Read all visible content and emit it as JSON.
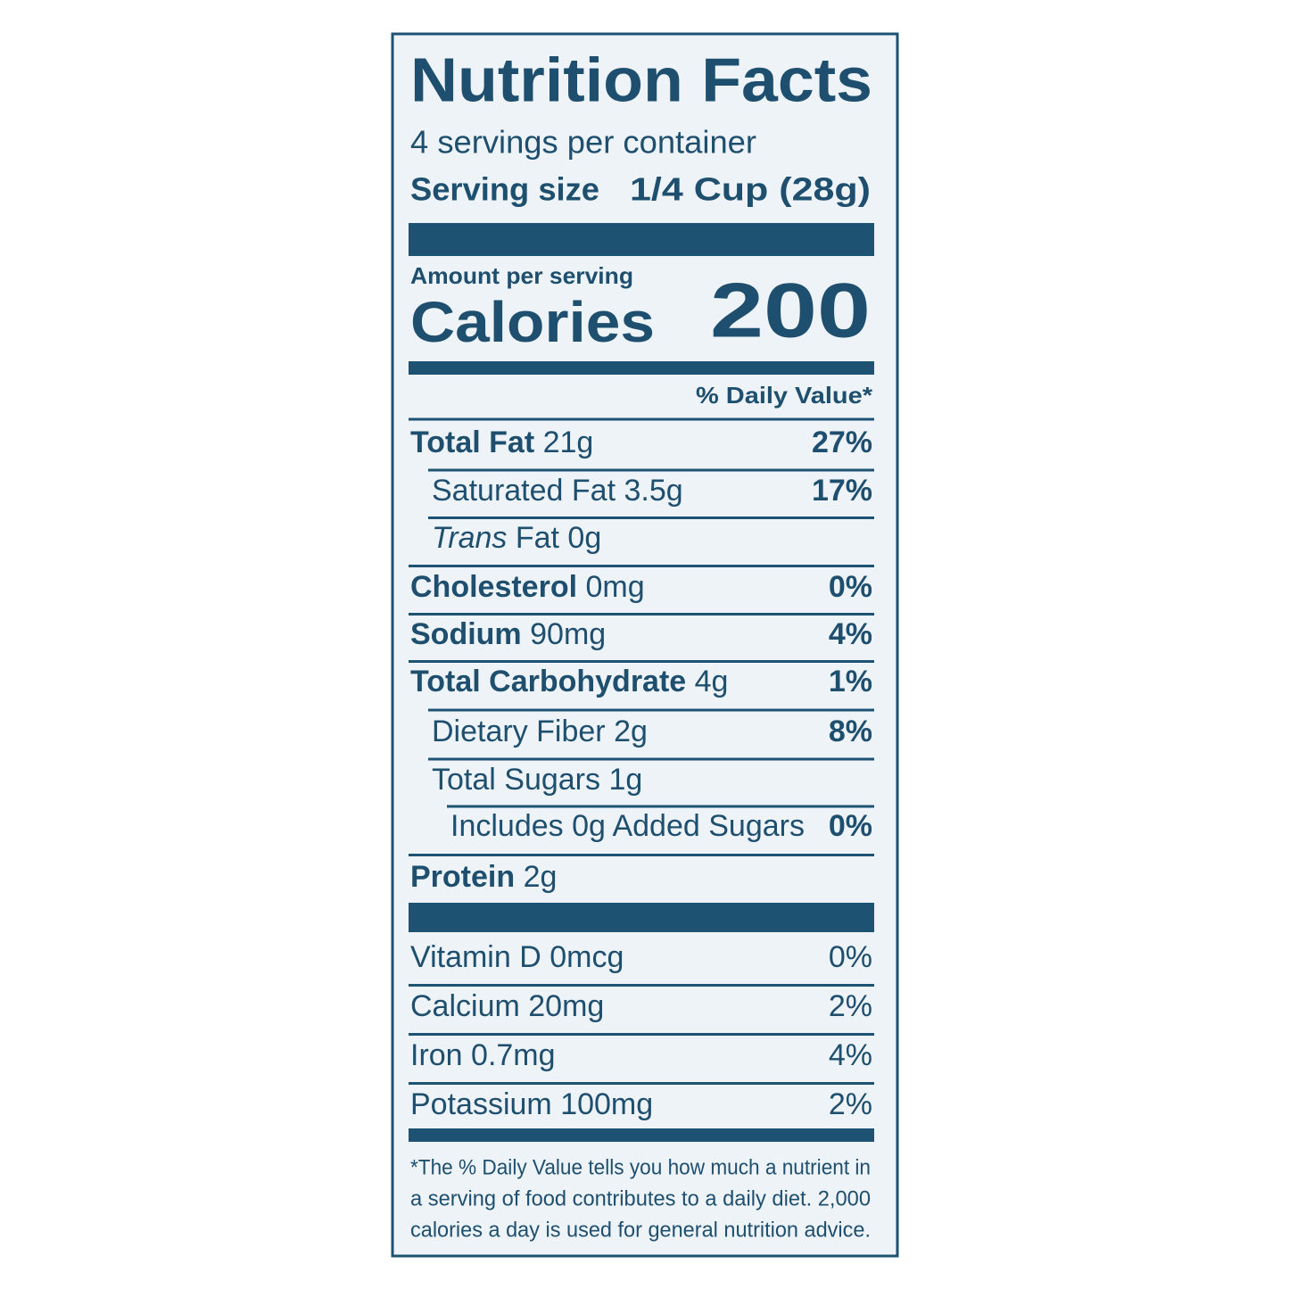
{
  "title": "Nutrition Facts",
  "servings": "4 servings per container",
  "serving_size": {
    "label": "Serving size",
    "value": "1/4 Cup (28g)"
  },
  "amount_per_serving": "Amount per serving",
  "calories": {
    "label": "Calories",
    "value": "200"
  },
  "daily_value_header": "% Daily Value*",
  "nutrients": [
    {
      "name": "Total Fat",
      "amount": "21g",
      "dv": "27%"
    },
    {
      "name": "Saturated Fat",
      "amount": "3.5g",
      "dv": "17%"
    },
    {
      "name": "Trans",
      "name_rest": "Fat",
      "amount": "0g"
    },
    {
      "name": "Cholesterol",
      "amount": "0mg",
      "dv": "0%"
    },
    {
      "name": "Sodium",
      "amount": "90mg",
      "dv": "4%"
    },
    {
      "name": "Total Carbohydrate",
      "amount": "4g",
      "dv": "1%"
    },
    {
      "name": "Dietary Fiber",
      "amount": "2g",
      "dv": "8%"
    },
    {
      "name": "Total Sugars",
      "amount": "1g"
    },
    {
      "name": "Includes 0g Added Sugars",
      "dv": "0%"
    },
    {
      "name": "Protein",
      "amount": "2g"
    }
  ],
  "vitamins": [
    {
      "name": "Vitamin D",
      "amount": "0mcg",
      "dv": "0%"
    },
    {
      "name": "Calcium",
      "amount": "20mg",
      "dv": "2%"
    },
    {
      "name": "Iron",
      "amount": "0.7mg",
      "dv": "4%"
    },
    {
      "name": "Potassium",
      "amount": "100mg",
      "dv": "2%"
    }
  ],
  "footnote": [
    "*The % Daily Value tells you how much a nutrient in",
    "a serving of food contributes to a daily diet. 2,000",
    "calories a day is used for general nutrition advice."
  ]
}
